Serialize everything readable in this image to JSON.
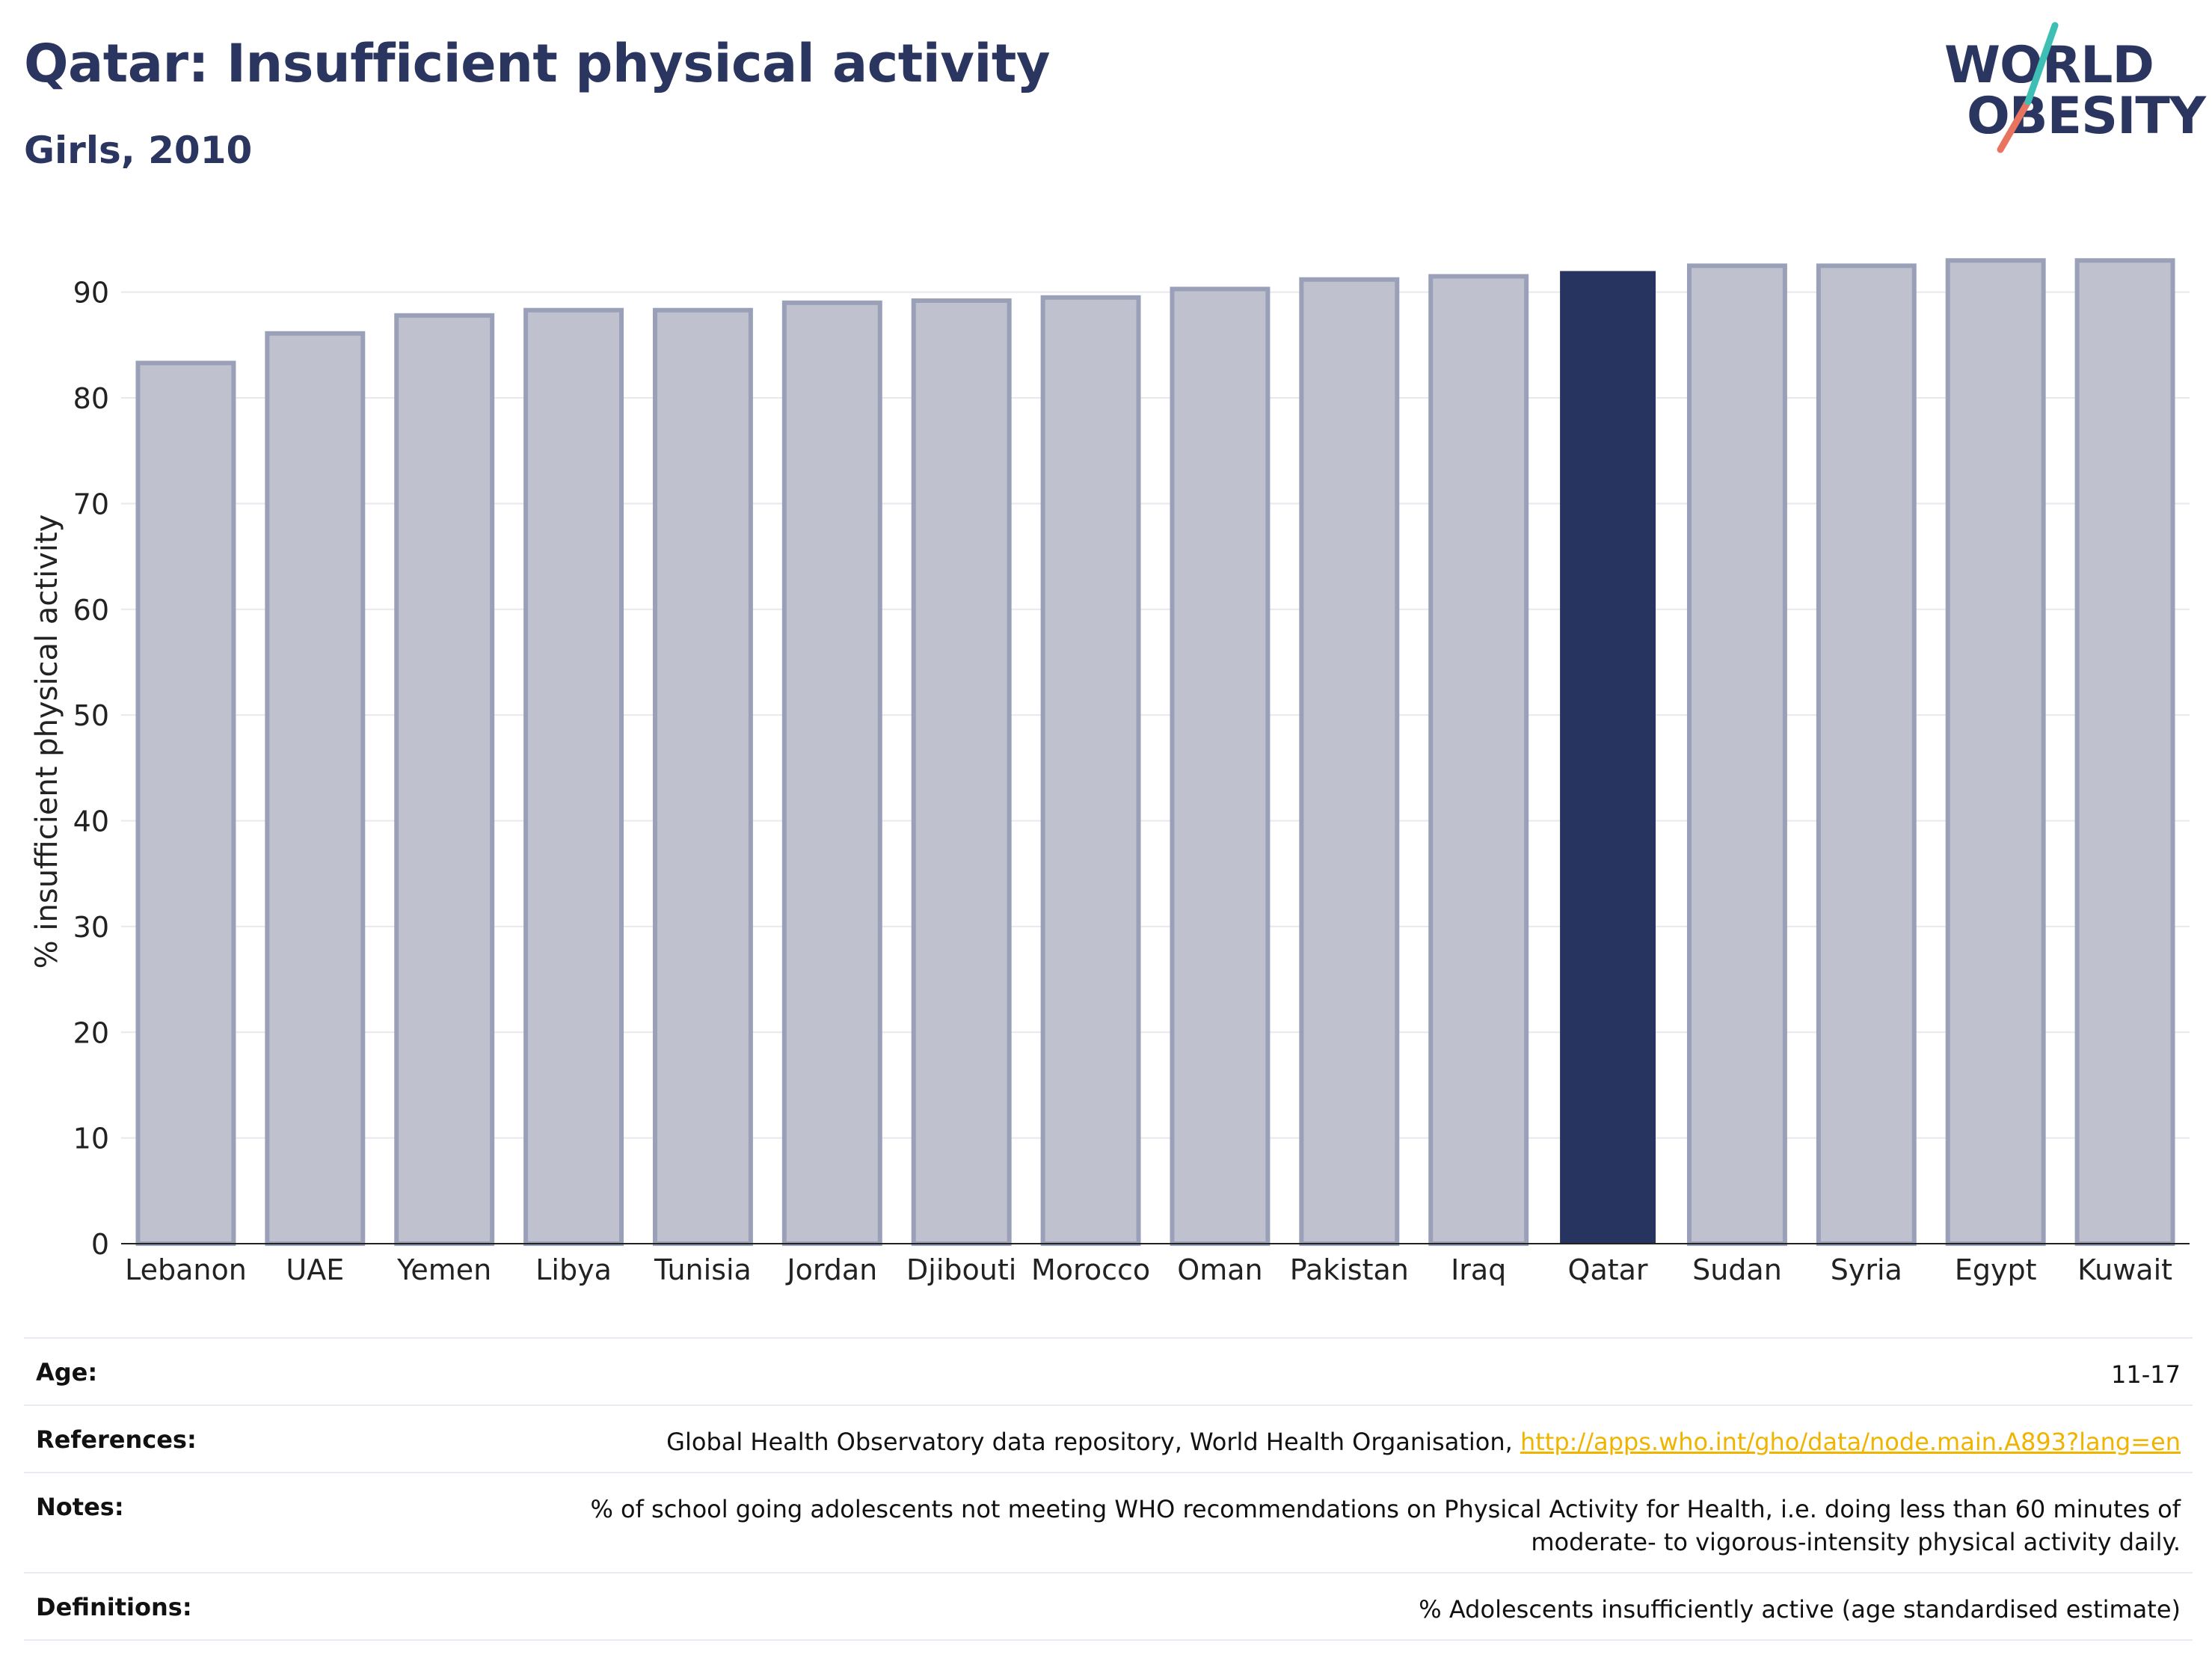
{
  "header": {
    "title": "Qatar: Insufficient physical activity",
    "subtitle": "Girls, 2010"
  },
  "logo": {
    "line1": "WORLD",
    "line2": "OBESITY"
  },
  "colors": {
    "highlight": "#283460",
    "bar_fill": "#bfc2ce",
    "bar_stroke": "#9aa0b8",
    "grid": "#e8e8ee",
    "axis": "#222222"
  },
  "chart_data": {
    "type": "bar",
    "ylabel": "% insufficient physical activity",
    "ylim": [
      0,
      95
    ],
    "yticks": [
      0,
      10,
      20,
      30,
      40,
      50,
      60,
      70,
      80,
      90
    ],
    "grid": true,
    "highlight_category": "Qatar",
    "categories": [
      "Lebanon",
      "UAE",
      "Yemen",
      "Libya",
      "Tunisia",
      "Jordan",
      "Djibouti",
      "Morocco",
      "Oman",
      "Pakistan",
      "Iraq",
      "Qatar",
      "Sudan",
      "Syria",
      "Egypt",
      "Kuwait"
    ],
    "values": [
      83.3,
      86.1,
      87.8,
      88.3,
      88.3,
      89.0,
      89.2,
      89.5,
      90.3,
      91.2,
      91.5,
      92.0,
      92.5,
      92.5,
      93.0,
      93.0
    ]
  },
  "info": [
    {
      "label": "Age:",
      "value": "11-17"
    },
    {
      "label": "References:",
      "value": "Global Health Observatory data repository, World Health Organisation, ",
      "link": "http://apps.who.int/gho/data/node.main.A893?lang=en"
    },
    {
      "label": "Notes:",
      "value": "% of school going adolescents not meeting WHO recommendations on Physical Activity for Health, i.e. doing less than 60 minutes of moderate- to vigorous-intensity physical activity daily."
    },
    {
      "label": "Definitions:",
      "value": "% Adolescents insufficiently active (age standardised estimate)"
    }
  ]
}
